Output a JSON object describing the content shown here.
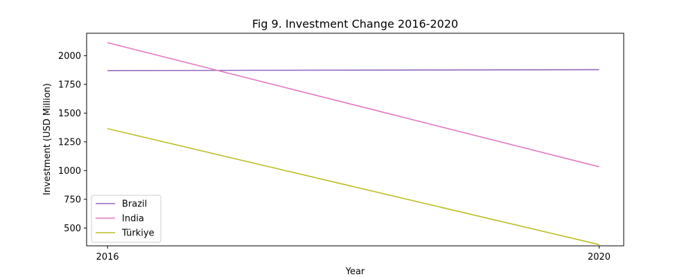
{
  "chart_data": {
    "type": "line",
    "title": "Fig 9. Investment Change 2016-2020",
    "xlabel": "Year",
    "ylabel": "Investment (USD Million)",
    "x": [
      "2016",
      "2020"
    ],
    "xlim": [
      2015.83,
      2020.2
    ],
    "ylim": [
      345,
      2195
    ],
    "yticks": [
      500,
      750,
      1000,
      1250,
      1500,
      1750,
      2000
    ],
    "yticks_labels": [
      "500",
      "750",
      "1000",
      "1250",
      "1500",
      "1750",
      "2000"
    ],
    "grid": false,
    "legend_position": "lower-left",
    "series": [
      {
        "name": "Brazil",
        "color": "#9467bd",
        "values": [
          1870,
          1878
        ]
      },
      {
        "name": "India",
        "color": "#e377c2",
        "values": [
          2113,
          1033
        ]
      },
      {
        "name": "Türkiye",
        "color": "#bcbd22",
        "values": [
          1365,
          356
        ]
      }
    ]
  }
}
